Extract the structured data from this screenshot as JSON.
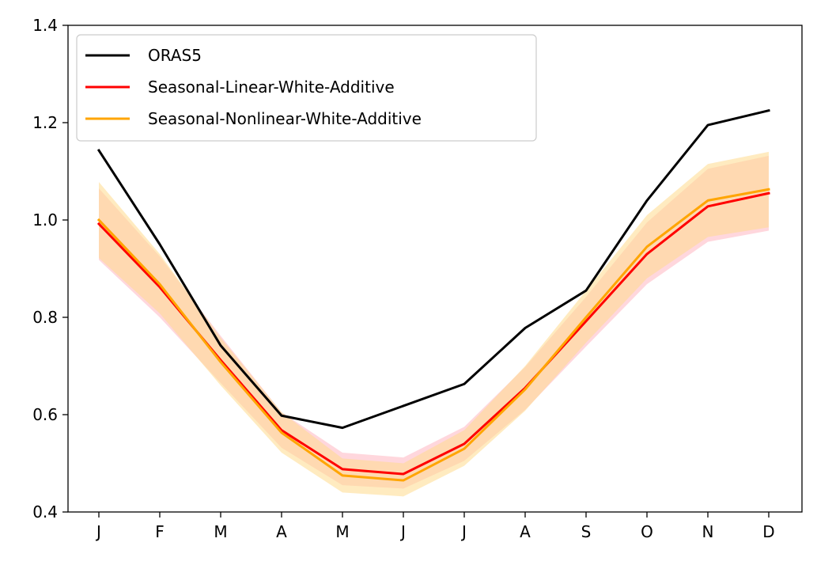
{
  "chart_data": {
    "type": "line",
    "title": "",
    "xlabel": "",
    "ylabel": "",
    "categories": [
      "J",
      "F",
      "M",
      "A",
      "M",
      "J",
      "J",
      "A",
      "S",
      "O",
      "N",
      "D"
    ],
    "ylim": [
      0.4,
      1.4
    ],
    "yticks": [
      "0.4",
      "0.6",
      "0.8",
      "1.0",
      "1.2",
      "1.4"
    ],
    "grid": false,
    "legend_position": "top-left",
    "series": [
      {
        "name": "ORAS5",
        "color": "#000000",
        "values": [
          1.143,
          0.95,
          0.742,
          0.598,
          0.573,
          0.618,
          0.663,
          0.778,
          0.855,
          1.04,
          1.195,
          1.225
        ]
      },
      {
        "name": "Seasonal-Linear-White-Additive",
        "color": "#ff0000",
        "band_color": "#ffb6c1",
        "values": [
          0.992,
          0.862,
          0.712,
          0.568,
          0.488,
          0.478,
          0.54,
          0.655,
          0.792,
          0.93,
          1.028,
          1.055
        ],
        "lower": [
          0.918,
          0.8,
          0.665,
          0.532,
          0.455,
          0.448,
          0.505,
          0.61,
          0.74,
          0.868,
          0.955,
          0.978
        ],
        "upper": [
          1.065,
          0.925,
          0.762,
          0.605,
          0.522,
          0.512,
          0.575,
          0.698,
          0.842,
          0.995,
          1.105,
          1.132
        ]
      },
      {
        "name": "Seasonal-Nonlinear-White-Additive",
        "color": "#ffa500",
        "band_color": "#ffdb8c",
        "values": [
          1.0,
          0.868,
          0.708,
          0.563,
          0.475,
          0.465,
          0.53,
          0.652,
          0.8,
          0.945,
          1.04,
          1.063
        ],
        "lower": [
          0.922,
          0.808,
          0.66,
          0.522,
          0.44,
          0.432,
          0.495,
          0.608,
          0.748,
          0.88,
          0.965,
          0.985
        ],
        "upper": [
          1.078,
          0.93,
          0.758,
          0.605,
          0.51,
          0.5,
          0.568,
          0.7,
          0.855,
          1.01,
          1.115,
          1.14
        ]
      }
    ]
  }
}
